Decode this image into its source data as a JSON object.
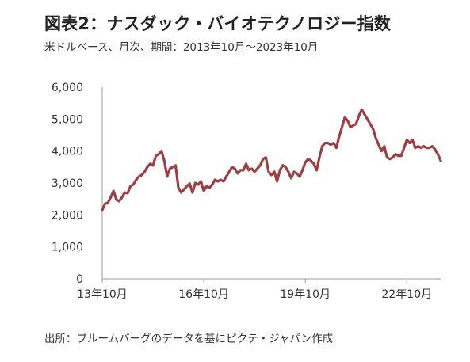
{
  "header": {
    "title": "図表2：ナスダック・バイオテクノロジー指数",
    "subtitle": "米ドルベース、月次、期間：2013年10月～2023年10月"
  },
  "footer": {
    "source": "出所：ブルームバーグのデータを基にピクテ・ジャパン作成"
  },
  "colors": {
    "line": "#9E3F44",
    "axis": "#999999"
  },
  "chart_data": {
    "type": "line",
    "title": "図表2：ナスダック・バイオテクノロジー指数",
    "subtitle": "米ドルベース、月次、期間：2013年10月～2023年10月",
    "xlabel": "",
    "ylabel": "",
    "ylim": [
      0,
      6000
    ],
    "yticks": [
      0,
      1000,
      2000,
      3000,
      4000,
      5000,
      6000
    ],
    "ytick_labels": [
      "0",
      "1,000",
      "2,000",
      "3,000",
      "4,000",
      "5,000",
      "6,000"
    ],
    "xticks": [
      {
        "index": 0,
        "label": "13年10月"
      },
      {
        "index": 36,
        "label": "16年10月"
      },
      {
        "index": 72,
        "label": "19年10月"
      },
      {
        "index": 108,
        "label": "22年10月"
      }
    ],
    "grid": false,
    "legend": "none",
    "x_start": "2013-10",
    "x_end": "2023-10",
    "series": [
      {
        "values": [
          2150,
          2350,
          2380,
          2550,
          2750,
          2480,
          2430,
          2550,
          2700,
          2680,
          2900,
          2950,
          3100,
          3200,
          3250,
          3350,
          3500,
          3600,
          3550,
          3850,
          3900,
          4000,
          3700,
          3200,
          3450,
          3500,
          3550,
          2850,
          2700,
          2800,
          2900,
          2980,
          2700,
          3000,
          2950,
          3050,
          2750,
          2900,
          2850,
          2950,
          3100,
          3050,
          3100,
          3050,
          3200,
          3350,
          3500,
          3450,
          3300,
          3400,
          3400,
          3600,
          3400,
          3450,
          3350,
          3450,
          3550,
          3750,
          3800,
          3350,
          3250,
          3350,
          3050,
          3400,
          3550,
          3500,
          3350,
          3150,
          3350,
          3300,
          3200,
          3400,
          3650,
          3750,
          3700,
          3600,
          3400,
          3800,
          4150,
          4250,
          4250,
          4200,
          4250,
          4100,
          4450,
          4750,
          5050,
          4950,
          4750,
          4800,
          4850,
          5100,
          5300,
          5150,
          5000,
          4850,
          4700,
          4400,
          4200,
          4000,
          4150,
          3800,
          3750,
          3800,
          3900,
          3850,
          3850,
          4100,
          4350,
          4250,
          4350,
          4100,
          4150,
          4100,
          4150,
          4100,
          4100,
          4150,
          4050,
          3900,
          3700
        ]
      }
    ]
  }
}
